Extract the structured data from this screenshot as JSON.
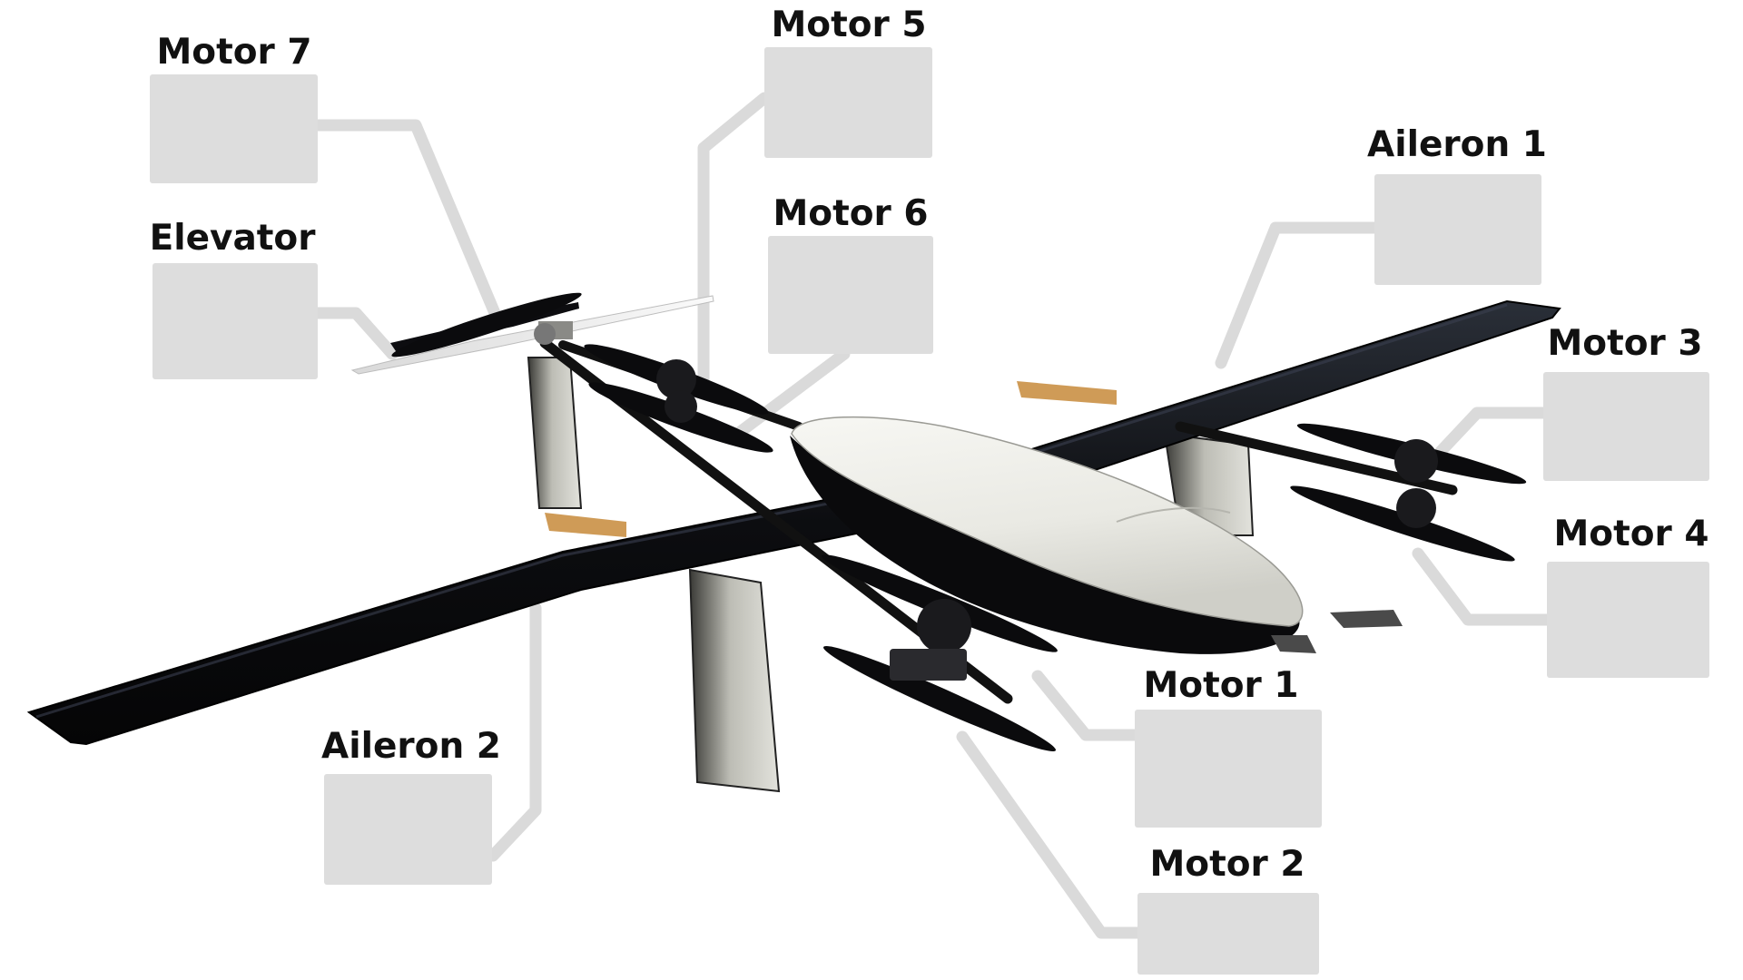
{
  "colors": {
    "background": "#ffffff",
    "box_fill": "#dddddd",
    "leader_line": "#dadada",
    "label_text": "#111111",
    "carbon_dark": "#0b0b0d",
    "fuselage_white": "#efefea",
    "tail_white": "#eaeaea",
    "boom_pod": "#cfcfca"
  },
  "aircraft": {
    "icon": "vtol-uav-diagram"
  },
  "callouts": [
    {
      "id": "motor-7",
      "label": "Motor 7"
    },
    {
      "id": "motor-5",
      "label": "Motor 5"
    },
    {
      "id": "motor-6",
      "label": "Motor 6"
    },
    {
      "id": "elevator",
      "label": "Elevator"
    },
    {
      "id": "aileron-1",
      "label": "Aileron 1"
    },
    {
      "id": "motor-3",
      "label": "Motor 3"
    },
    {
      "id": "motor-4",
      "label": "Motor 4"
    },
    {
      "id": "motor-1",
      "label": "Motor 1"
    },
    {
      "id": "aileron-2",
      "label": "Aileron 2"
    },
    {
      "id": "motor-2",
      "label": "Motor 2"
    }
  ]
}
